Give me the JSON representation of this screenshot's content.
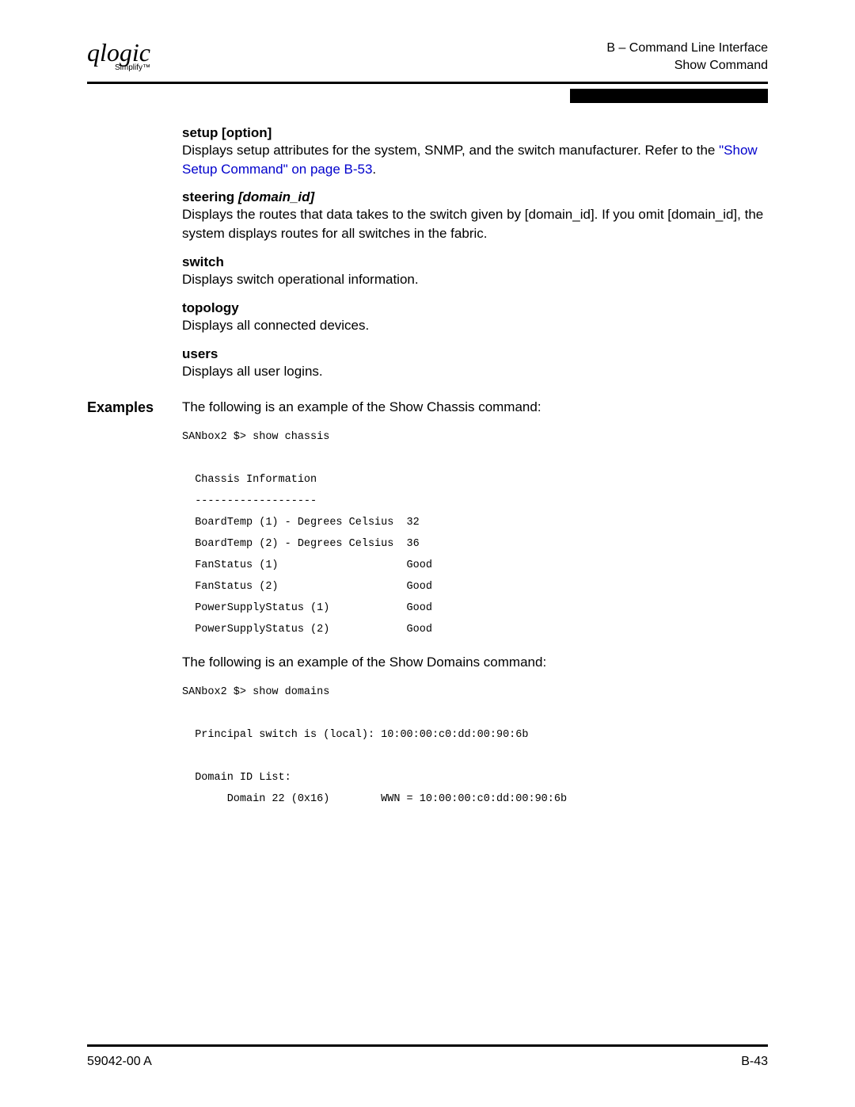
{
  "header": {
    "logo": "qlogic",
    "logo_sub": "Simplify™",
    "right_line1": "B – Command Line Interface",
    "right_line2": "Show Command"
  },
  "sections": {
    "setup": {
      "title": "setup [option]",
      "body_prefix": "Displays setup attributes for the system, SNMP, and the switch manufacturer. Refer to the ",
      "link_text": "\"Show Setup Command\" on page B-53",
      "body_suffix": "."
    },
    "steering": {
      "title_plain": "steering ",
      "title_italic": "[domain_id]",
      "body": "Displays the routes that data takes to the switch given by [domain_id]. If you omit [domain_id], the system displays routes for all switches in the fabric."
    },
    "switch": {
      "title": "switch",
      "body": "Displays switch operational information."
    },
    "topology": {
      "title": "topology",
      "body": "Displays all connected devices."
    },
    "users": {
      "title": "users",
      "body": "Displays all user logins."
    }
  },
  "examples": {
    "label": "Examples",
    "intro1": "The following is an example of the Show Chassis command:",
    "code1": "SANbox2 $> show chassis\n\n  Chassis Information\n  -------------------\n  BoardTemp (1) - Degrees Celsius  32\n  BoardTemp (2) - Degrees Celsius  36\n  FanStatus (1)                    Good\n  FanStatus (2)                    Good\n  PowerSupplyStatus (1)            Good\n  PowerSupplyStatus (2)            Good",
    "intro2": "The following is an example of the Show Domains command:",
    "code2": "SANbox2 $> show domains\n\n  Principal switch is (local): 10:00:00:c0:dd:00:90:6b\n\n  Domain ID List:\n       Domain 22 (0x16)        WWN = 10:00:00:c0:dd:00:90:6b"
  },
  "footer": {
    "left": "59042-00  A",
    "right": "B-43"
  }
}
